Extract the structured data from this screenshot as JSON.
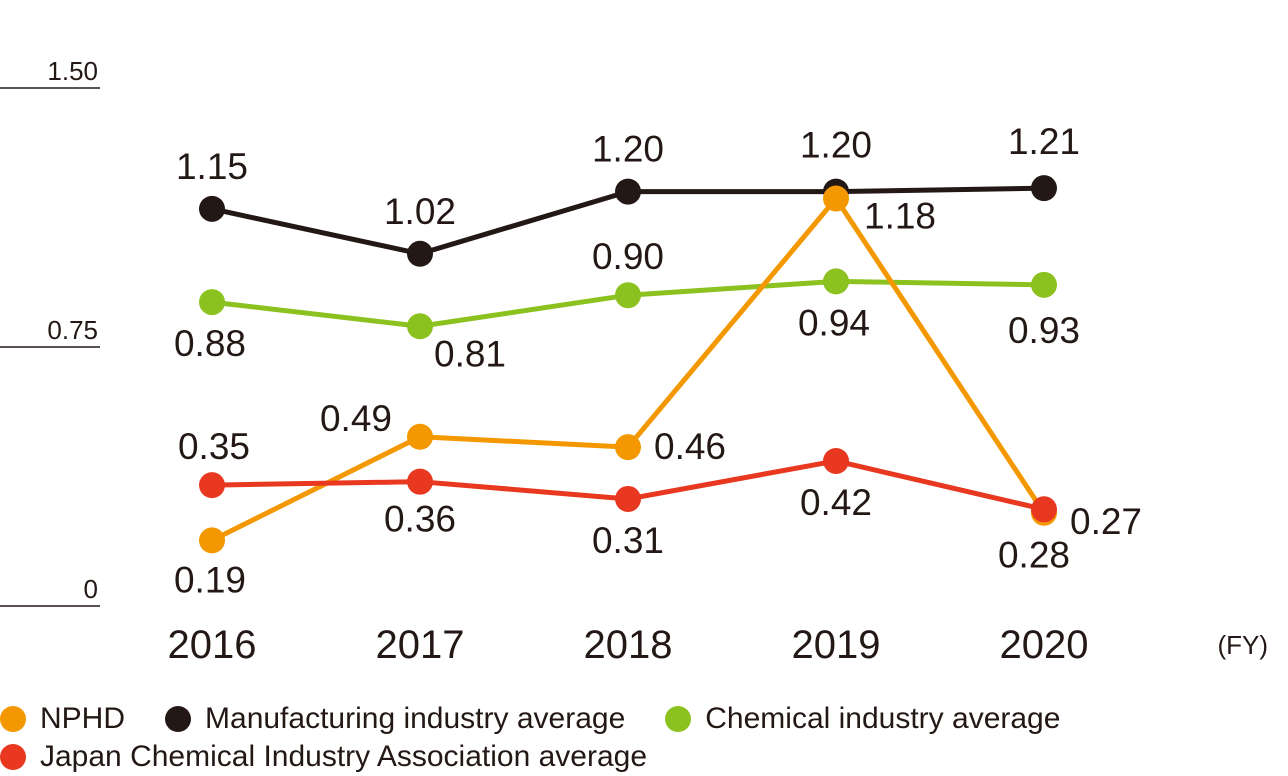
{
  "chart_data": {
    "type": "line",
    "title": "",
    "xlabel": "(FY)",
    "ylabel": "",
    "categories": [
      "2016",
      "2017",
      "2018",
      "2019",
      "2020"
    ],
    "ylim": [
      0,
      1.5
    ],
    "yticks": [
      {
        "value": 0,
        "label": "0"
      },
      {
        "value": 0.75,
        "label": "0.75"
      },
      {
        "value": 1.5,
        "label": "1.50"
      }
    ],
    "legend_position": "bottom",
    "series": [
      {
        "key": "manufacturing",
        "name": "Manufacturing industry average",
        "color": "#231815",
        "values": [
          1.15,
          1.02,
          1.2,
          1.2,
          1.21
        ],
        "labels": [
          "1.15",
          "1.02",
          "1.20",
          "1.20",
          "1.21"
        ]
      },
      {
        "key": "chemical",
        "name": "Chemical industry average",
        "color": "#8cc21f",
        "values": [
          0.88,
          0.81,
          0.9,
          0.94,
          0.93
        ],
        "labels": [
          "0.88",
          "0.81",
          "0.90",
          "0.94",
          "0.93"
        ]
      },
      {
        "key": "nphd",
        "name": "NPHD",
        "color": "#f39800",
        "values": [
          0.19,
          0.49,
          0.46,
          1.18,
          0.27
        ],
        "labels": [
          "0.19",
          "0.49",
          "0.46",
          "1.18",
          "0.27"
        ]
      },
      {
        "key": "jcia",
        "name": "Japan Chemical Industry Association average",
        "color": "#e83820",
        "values": [
          0.35,
          0.36,
          0.31,
          0.42,
          0.28
        ],
        "labels": [
          "0.35",
          "0.36",
          "0.31",
          "0.42",
          "0.28"
        ]
      }
    ]
  },
  "legend": {
    "rows": [
      [
        "nphd",
        "manufacturing",
        "chemical"
      ],
      [
        "jcia"
      ]
    ]
  }
}
